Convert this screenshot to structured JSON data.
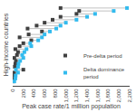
{
  "chart_data": {
    "type": "dumbbell",
    "orientation": "horizontal",
    "xlabel": "Peak case rate/1 million population",
    "ylabel": "High-income countries",
    "categories": [
      null,
      null,
      null,
      null,
      null,
      null,
      null,
      null,
      null,
      null,
      null,
      null,
      null,
      null,
      null,
      null,
      null,
      null,
      null,
      null,
      null,
      null,
      null,
      null,
      null,
      null
    ],
    "series": [
      {
        "name": "Pre-delta period",
        "color": "#404040",
        "marker": "square",
        "values": [
          10,
          15,
          20,
          25,
          200,
          40,
          50,
          60,
          30,
          80,
          100,
          50,
          130,
          200,
          350,
          130,
          300,
          550,
          280,
          450,
          600,
          750,
          900,
          1200,
          1250,
          900
        ]
      },
      {
        "name": "Delta dominance\nperiod",
        "color": "#33bbee",
        "marker": "square",
        "values": [
          30,
          50,
          55,
          100,
          60,
          100,
          110,
          140,
          200,
          180,
          220,
          260,
          350,
          330,
          480,
          550,
          600,
          700,
          820,
          900,
          1000,
          1200,
          1400,
          1550,
          1900,
          2150
        ]
      }
    ],
    "color": "#b0b0b0",
    "xlim": [
      0,
      2200
    ],
    "xticks": [
      0,
      200,
      400,
      600,
      800,
      {
        "value": 1000,
        "label": "1,000"
      },
      {
        "value": 1200,
        "label": "1,200"
      },
      {
        "value": 1400,
        "label": "1,400"
      },
      {
        "value": 1600,
        "label": "1,600"
      },
      {
        "value": 1800,
        "label": "1,800"
      },
      {
        "value": 2000,
        "label": "2,000"
      },
      {
        "value": 2200,
        "label": "2,200"
      }
    ],
    "tick_labels": "x",
    "grid": false,
    "legend": "lower right"
  }
}
